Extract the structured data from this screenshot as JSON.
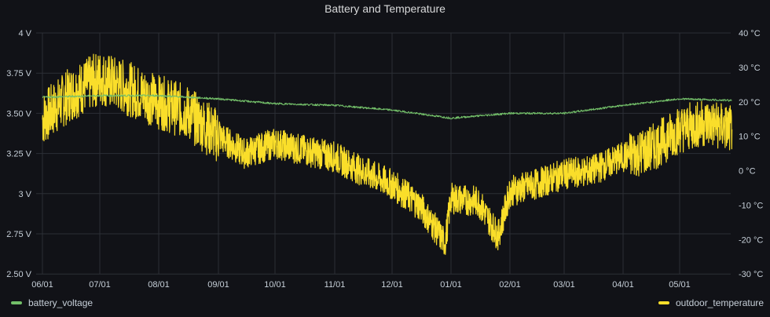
{
  "title": "Battery and Temperature",
  "colors": {
    "background": "#111217",
    "grid": "#2c2f36",
    "battery": "#73bf69",
    "temperature": "#fade2a"
  },
  "legend": {
    "battery": "battery_voltage",
    "temperature": "outdoor_temperature"
  },
  "chart_data": {
    "type": "line",
    "title": "Battery and Temperature",
    "x_ticks": [
      "06/01",
      "07/01",
      "08/01",
      "09/01",
      "10/01",
      "11/01",
      "12/01",
      "01/01",
      "02/01",
      "03/01",
      "04/01",
      "05/01"
    ],
    "x_range_months": [
      "06/01",
      "05/28"
    ],
    "y_left": {
      "unit": "V",
      "ylim": [
        2.5,
        4.0
      ],
      "ticks": [
        "2.50 V",
        "2.75 V",
        "3 V",
        "3.25 V",
        "3.50 V",
        "3.75 V",
        "4 V"
      ]
    },
    "y_right": {
      "unit": "°C",
      "ylim": [
        -30,
        40
      ],
      "ticks": [
        "-30 °C",
        "-20 °C",
        "-10 °C",
        "0 °C",
        "10 °C",
        "20 °C",
        "30 °C",
        "40 °C"
      ]
    },
    "grid": true,
    "legend_placement": "bottom",
    "series": [
      {
        "name": "battery_voltage",
        "axis": "left",
        "month_points": [
          [
            "06/01",
            3.6
          ],
          [
            "07/01",
            3.61
          ],
          [
            "08/01",
            3.61
          ],
          [
            "09/01",
            3.59
          ],
          [
            "10/01",
            3.56
          ],
          [
            "11/01",
            3.55
          ],
          [
            "12/01",
            3.52
          ],
          [
            "01/01",
            3.47
          ],
          [
            "02/01",
            3.5
          ],
          [
            "03/01",
            3.5
          ],
          [
            "04/01",
            3.55
          ],
          [
            "05/01",
            3.59
          ],
          [
            "05/28",
            3.58
          ]
        ]
      },
      {
        "name": "outdoor_temperature",
        "axis": "right",
        "month_points": [
          [
            "06/01",
            15
          ],
          [
            "06/15",
            22
          ],
          [
            "07/01",
            27
          ],
          [
            "07/15",
            24
          ],
          [
            "08/01",
            20
          ],
          [
            "08/15",
            17
          ],
          [
            "09/01",
            10
          ],
          [
            "09/15",
            5
          ],
          [
            "10/01",
            8
          ],
          [
            "10/15",
            6
          ],
          [
            "11/01",
            4
          ],
          [
            "11/15",
            0
          ],
          [
            "12/01",
            -4
          ],
          [
            "12/15",
            -10
          ],
          [
            "12/28",
            -21
          ],
          [
            "01/01",
            -8
          ],
          [
            "01/15",
            -9
          ],
          [
            "01/25",
            -19
          ],
          [
            "02/01",
            -6
          ],
          [
            "02/15",
            -4
          ],
          [
            "03/01",
            -1
          ],
          [
            "03/15",
            0
          ],
          [
            "04/01",
            4
          ],
          [
            "04/15",
            6
          ],
          [
            "05/01",
            12
          ],
          [
            "05/15",
            14
          ],
          [
            "05/28",
            12
          ]
        ]
      }
    ]
  }
}
